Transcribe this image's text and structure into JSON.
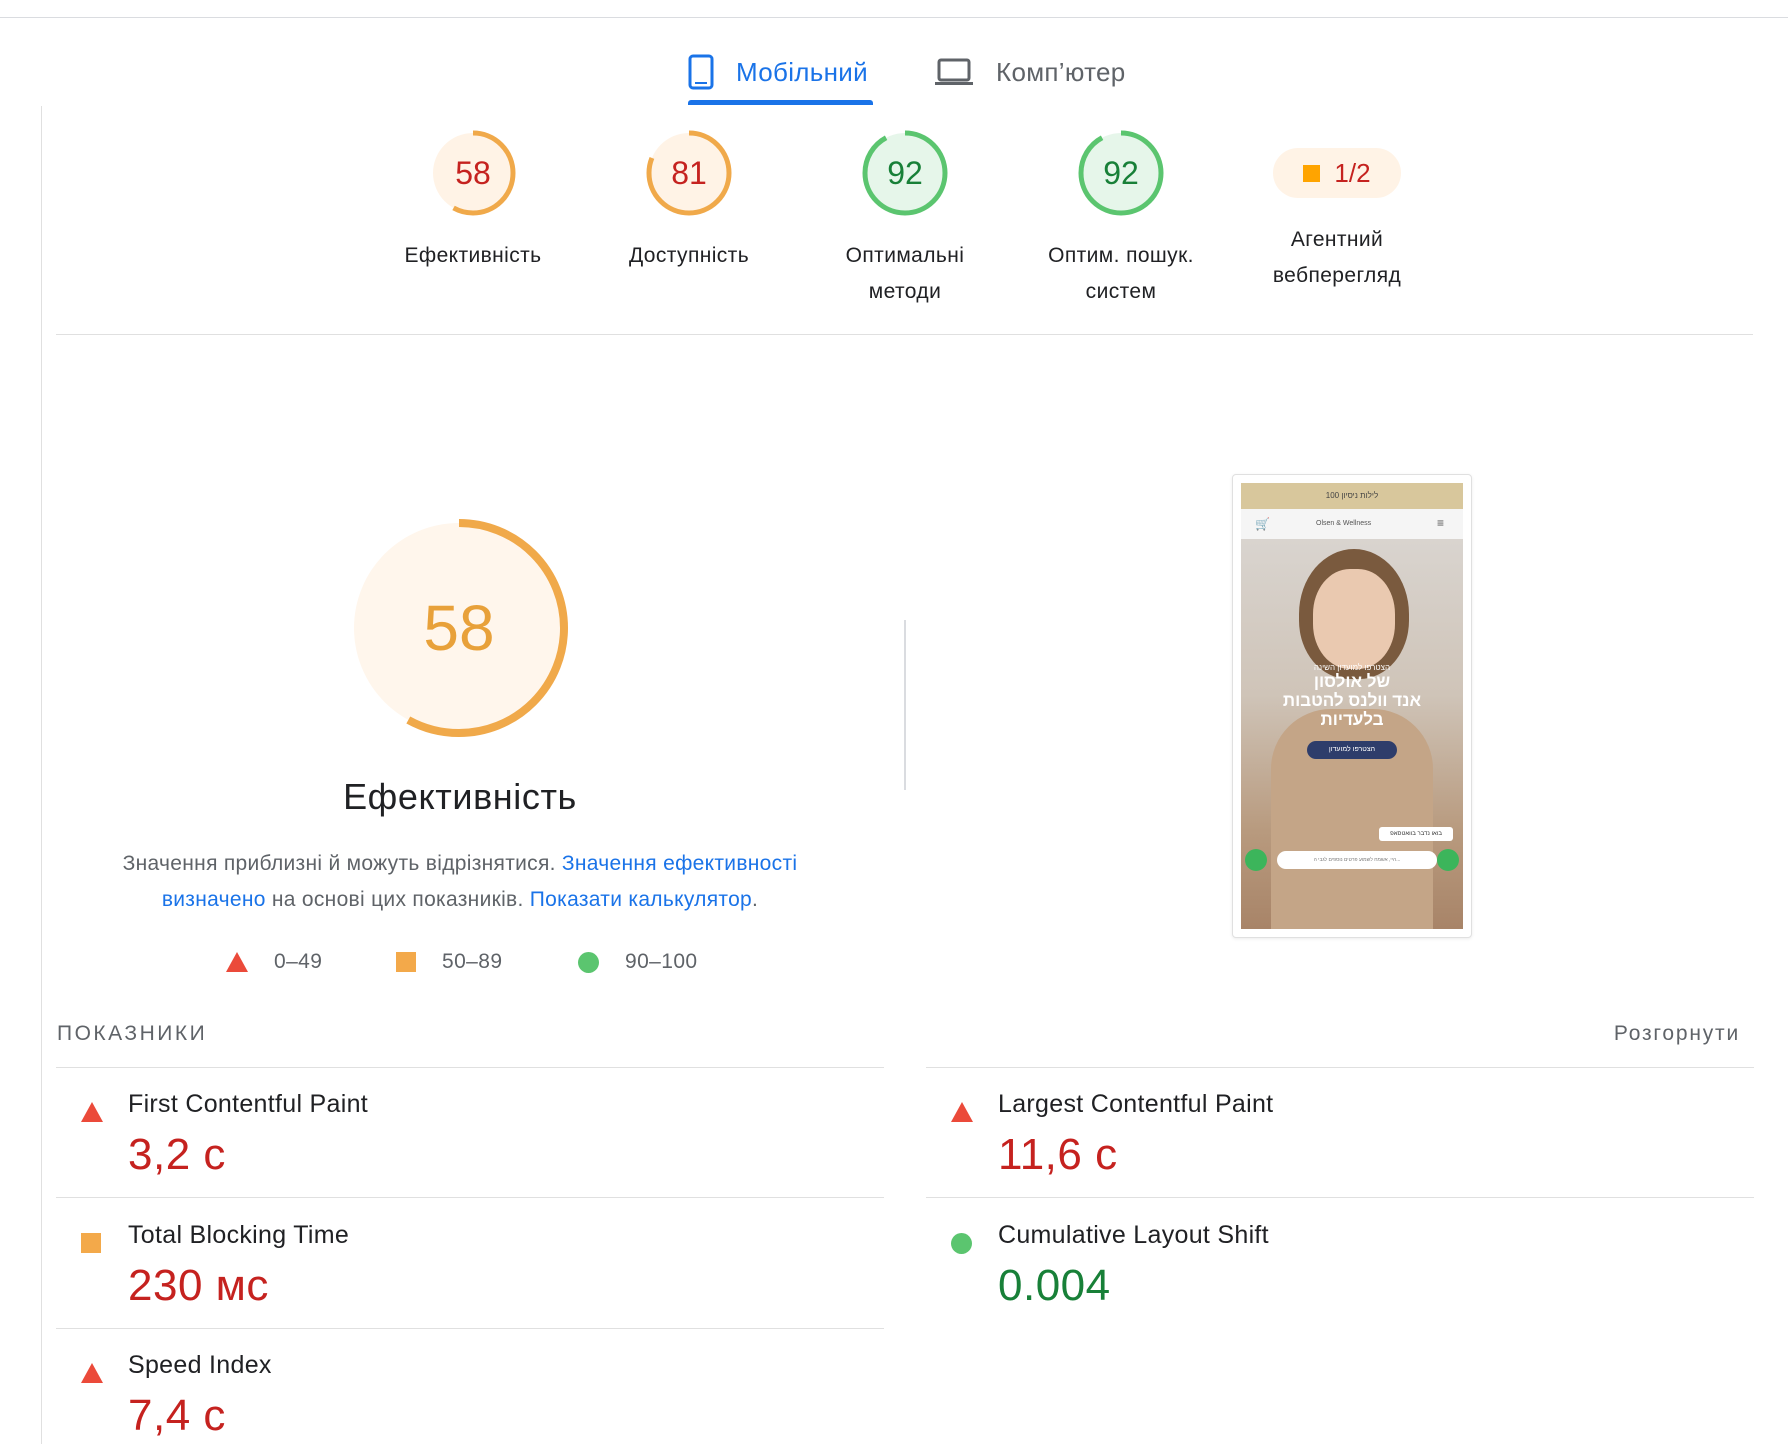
{
  "tabs": [
    {
      "label": "Мобільний",
      "icon": "phone-icon",
      "active": true
    },
    {
      "label": "Комп’ютер",
      "icon": "laptop-icon",
      "active": false
    }
  ],
  "colors": {
    "accent": "#1a73e8",
    "fail": "#c5221f",
    "average": "#ffa400",
    "pass": "#0cce6b"
  },
  "categories": [
    {
      "score": "58",
      "score_value": 58,
      "label_line1": "Ефективність",
      "label_line2": "",
      "rating": "average"
    },
    {
      "score": "81",
      "score_value": 81,
      "label_line1": "Доступність",
      "label_line2": "",
      "rating": "average"
    },
    {
      "score": "92",
      "score_value": 92,
      "label_line1": "Оптимальні",
      "label_line2": "методи",
      "rating": "pass"
    },
    {
      "score": "92",
      "score_value": 92,
      "label_line1": "Оптим. пошук.",
      "label_line2": "систем",
      "rating": "pass"
    },
    {
      "score": "1/2",
      "label_line1": "Агентний",
      "label_line2": "вебперегляд",
      "rating": "average"
    }
  ],
  "performance": {
    "score": "58",
    "score_value": 58,
    "title": "Ефективність",
    "desc_text1": "Значення приблизні й можуть відрізнятися. ",
    "desc_link1": "Значення ефективності визначено",
    "desc_text2": " на основі цих показників. ",
    "desc_link2": "Показати калькулятор",
    "desc_text3": "."
  },
  "legend": [
    {
      "range": "0–49",
      "icon": "triangle-icon"
    },
    {
      "range": "50–89",
      "icon": "square-icon"
    },
    {
      "range": "90–100",
      "icon": "circle-icon"
    }
  ],
  "screenshot": {
    "banner": "100 לילות ניסיון",
    "brand": "Olsen & Wellness",
    "headline_small": "הצטרפו למועדון השינה",
    "headline_1": "של אולסון",
    "headline_2": "אנד וולנס להטבות",
    "headline_3": "בלעדיות",
    "cta": "הצטרפו למועדון",
    "chat_label": "בואו נדבר בוואטסאפ",
    "chat_input": "היי, אשמח לשמוע פרטים נוספים לגבי ה..."
  },
  "metrics_section": {
    "title": "ПОКАЗНИКИ",
    "expand": "Розгорнути"
  },
  "metrics": [
    {
      "label": "First Contentful Paint",
      "value": "3,2 с",
      "rating": "fail"
    },
    {
      "label": "Largest Contentful Paint",
      "value": "11,6 с",
      "rating": "fail"
    },
    {
      "label": "Total Blocking Time",
      "value": "230 мс",
      "rating": "average"
    },
    {
      "label": "Cumulative Layout Shift",
      "value": "0.004",
      "rating": "pass"
    },
    {
      "label": "Speed Index",
      "value": "7,4 с",
      "rating": "fail"
    }
  ]
}
